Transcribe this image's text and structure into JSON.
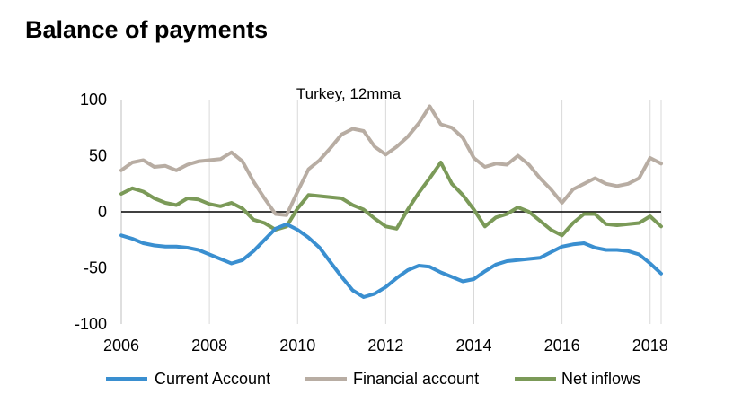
{
  "title": "Balance of payments",
  "chart_data": {
    "type": "line",
    "title": "Turkey, 12mma",
    "xlabel": "",
    "ylabel": "",
    "xlim": [
      2006,
      2018.25
    ],
    "ylim": [
      -100,
      100
    ],
    "x_ticks": [
      2006,
      2008,
      2010,
      2012,
      2014,
      2016,
      2018
    ],
    "y_ticks": [
      100,
      50,
      0,
      -50,
      -100
    ],
    "grid": "vertical",
    "legend": "bottom",
    "x": [
      2006.0,
      2006.25,
      2006.5,
      2006.75,
      2007.0,
      2007.25,
      2007.5,
      2007.75,
      2008.0,
      2008.25,
      2008.5,
      2008.75,
      2009.0,
      2009.25,
      2009.5,
      2009.75,
      2010.0,
      2010.25,
      2010.5,
      2010.75,
      2011.0,
      2011.25,
      2011.5,
      2011.75,
      2012.0,
      2012.25,
      2012.5,
      2012.75,
      2013.0,
      2013.25,
      2013.5,
      2013.75,
      2014.0,
      2014.25,
      2014.5,
      2014.75,
      2015.0,
      2015.25,
      2015.5,
      2015.75,
      2016.0,
      2016.25,
      2016.5,
      2016.75,
      2017.0,
      2017.25,
      2017.5,
      2017.75,
      2018.0,
      2018.25
    ],
    "series": [
      {
        "name": "Current Account",
        "color": "#3a8fd0",
        "values": [
          -21,
          -24,
          -28,
          -30,
          -31,
          -31,
          -32,
          -34,
          -38,
          -42,
          -46,
          -43,
          -35,
          -25,
          -15,
          -11,
          -16,
          -23,
          -32,
          -45,
          -58,
          -70,
          -76,
          -73,
          -67,
          -59,
          -52,
          -48,
          -49,
          -54,
          -58,
          -62,
          -60,
          -53,
          -47,
          -44,
          -43,
          -42,
          -41,
          -36,
          -31,
          -29,
          -28,
          -32,
          -34,
          -34,
          -35,
          -38,
          -46,
          -55
        ]
      },
      {
        "name": "Financial account",
        "color": "#b8ada3",
        "values": [
          37,
          44,
          46,
          40,
          41,
          37,
          42,
          45,
          46,
          47,
          53,
          45,
          27,
          12,
          -2,
          -3,
          18,
          38,
          46,
          57,
          69,
          74,
          72,
          58,
          51,
          58,
          67,
          79,
          94,
          78,
          75,
          66,
          48,
          40,
          43,
          42,
          50,
          42,
          30,
          20,
          8,
          20,
          25,
          30,
          25,
          23,
          25,
          30,
          48,
          43
        ]
      },
      {
        "name": "Net inflows",
        "color": "#7b9a58",
        "values": [
          16,
          21,
          18,
          12,
          8,
          6,
          12,
          11,
          7,
          5,
          8,
          3,
          -7,
          -10,
          -16,
          -13,
          3,
          15,
          14,
          13,
          12,
          6,
          2,
          -6,
          -13,
          -15,
          2,
          17,
          30,
          44,
          25,
          15,
          2,
          -13,
          -5,
          -2,
          4,
          0,
          -8,
          -16,
          -21,
          -10,
          -2,
          -2,
          -11,
          -12,
          -11,
          -10,
          -4,
          -13
        ]
      }
    ]
  }
}
